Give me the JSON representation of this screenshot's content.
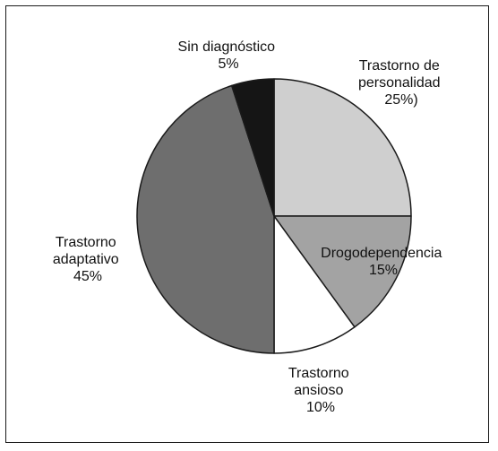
{
  "chart_data": {
    "type": "pie",
    "title": "",
    "slices": [
      {
        "label_lines": [
          "Trastorno de",
          "personalidad",
          "25%)"
        ],
        "value": 25,
        "color": "#cfcfcf"
      },
      {
        "label_lines": [
          "Drogodependencia",
          "15%"
        ],
        "value": 15,
        "color": "#a3a3a3"
      },
      {
        "label_lines": [
          "Trastorno",
          "ansioso",
          "10%"
        ],
        "value": 10,
        "color": "#ffffff"
      },
      {
        "label_lines": [
          "Trastorno",
          "adaptativo",
          "45%"
        ],
        "value": 45,
        "color": "#6e6e6e"
      },
      {
        "label_lines": [
          "Sin diagnóstico",
          "5%"
        ],
        "value": 5,
        "color": "#151515"
      }
    ]
  }
}
